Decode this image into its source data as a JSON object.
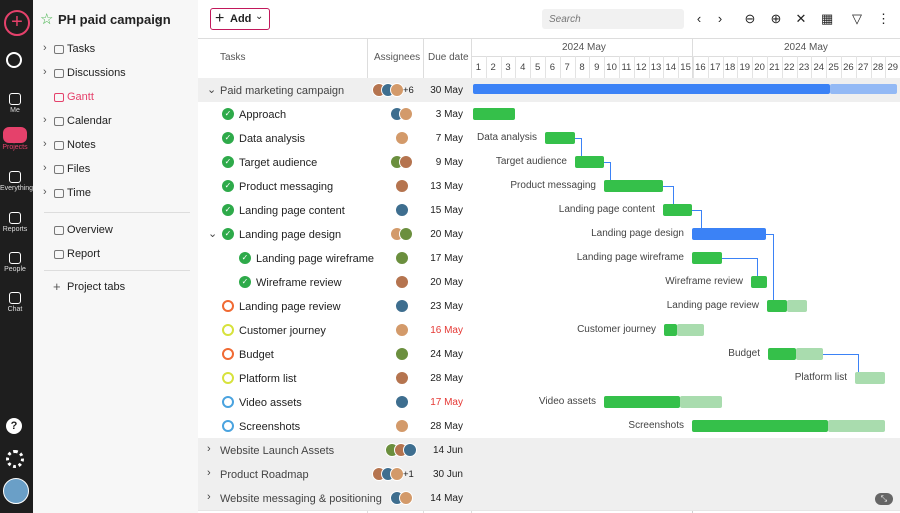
{
  "sidebar": {
    "nav": [
      "Me",
      "Projects",
      "Everything",
      "Reports",
      "People",
      "Chat"
    ]
  },
  "project": {
    "title": "PH paid campaign",
    "menu": [
      "Tasks",
      "Discussions",
      "Gantt",
      "Calendar",
      "Notes",
      "Files",
      "Time"
    ],
    "views": [
      "Overview",
      "Report"
    ],
    "tabs": "Project tabs"
  },
  "toolbar": {
    "add": "Add",
    "search": "Search"
  },
  "table": {
    "headers": [
      "Tasks",
      "Assignees",
      "Due date"
    ],
    "month": "2024 May",
    "days": [
      "1",
      "2",
      "3",
      "4",
      "5",
      "6",
      "7",
      "8",
      "9",
      "10",
      "11",
      "12",
      "13",
      "14",
      "15",
      "16",
      "17",
      "18",
      "19",
      "20",
      "21",
      "22",
      "23",
      "24",
      "25",
      "26",
      "27",
      "28",
      "29"
    ],
    "rows": [
      {
        "name": "Paid marketing campaign",
        "extra": "+6",
        "due": "30 May"
      },
      {
        "name": "Approach",
        "due": "3 May"
      },
      {
        "name": "Data analysis",
        "due": "7 May"
      },
      {
        "name": "Target audience",
        "due": "9 May"
      },
      {
        "name": "Product messaging",
        "due": "13 May"
      },
      {
        "name": "Landing page content",
        "due": "15 May"
      },
      {
        "name": "Landing page design",
        "due": "20 May"
      },
      {
        "name": "Landing page wireframe",
        "due": "17 May"
      },
      {
        "name": "Wireframe review",
        "due": "20 May"
      },
      {
        "name": "Landing page review",
        "due": "23 May"
      },
      {
        "name": "Customer journey",
        "due": "16 May"
      },
      {
        "name": "Budget",
        "due": "24 May"
      },
      {
        "name": "Platform list",
        "due": "28 May"
      },
      {
        "name": "Video assets",
        "due": "17 May"
      },
      {
        "name": "Screenshots",
        "due": "28 May"
      },
      {
        "name": "Website Launch Assets",
        "due": "14 Jun"
      },
      {
        "name": "Product Roadmap",
        "extra": "+1",
        "due": "30 Jun"
      },
      {
        "name": "Website messaging & positioning",
        "due": "14 May"
      }
    ]
  }
}
